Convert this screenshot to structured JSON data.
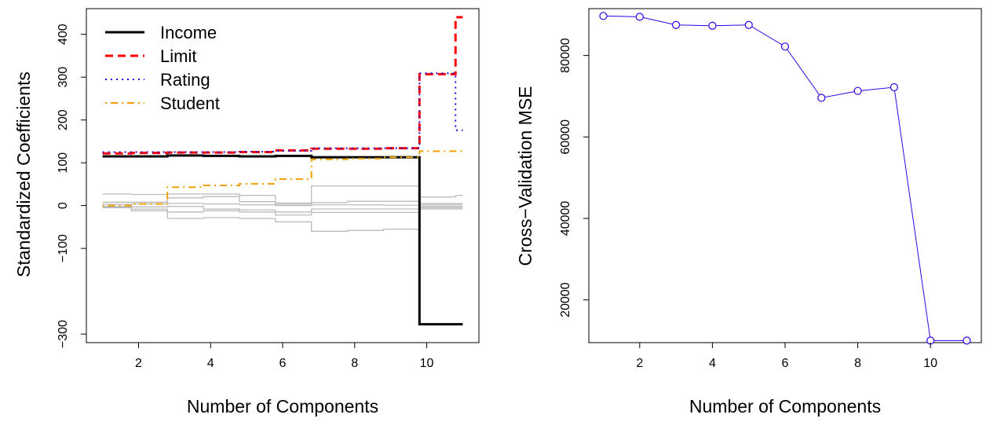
{
  "chart_data": [
    {
      "type": "line",
      "title": "",
      "xlabel": "Number of Components",
      "ylabel": "Standardized Coefficients",
      "xlim": [
        0.55,
        11.45
      ],
      "ylim": [
        -320,
        460
      ],
      "x_ticks": [
        2,
        4,
        6,
        8,
        10
      ],
      "y_ticks": [
        -300,
        -100,
        0,
        100,
        200,
        300,
        400
      ],
      "y_tick_labels": [
        "−300",
        "−100",
        "0",
        "100",
        "200",
        "300",
        "400"
      ],
      "legend_position": "top-left",
      "grid": false,
      "x": [
        1,
        2,
        3,
        4,
        5,
        6,
        7,
        8,
        9,
        10,
        11
      ],
      "series": [
        {
          "name": "Income",
          "color": "#000000",
          "dash": "solid",
          "values": [
            115,
            115,
            117,
            116,
            115,
            116,
            113,
            113,
            113,
            -277,
            -277
          ]
        },
        {
          "name": "Limit",
          "color": "#ff0000",
          "dash": "dashed",
          "values": [
            122,
            123,
            124,
            124,
            125,
            129,
            133,
            133,
            134,
            307,
            440
          ]
        },
        {
          "name": "Rating",
          "color": "#3300cc",
          "dash": "dotted",
          "values": [
            125,
            125,
            125,
            125,
            126,
            128,
            134,
            134,
            134,
            309,
            176
          ]
        },
        {
          "name": "Student",
          "color": "#f0a000",
          "dash": "dotdash",
          "values": [
            0,
            4,
            43,
            47,
            51,
            62,
            108,
            110,
            113,
            127,
            127
          ]
        },
        {
          "name": "",
          "color": "#bbbbbb",
          "dash": "solid",
          "values": [
            27,
            26,
            27,
            27,
            24,
            3,
            46,
            46,
            46,
            20,
            24
          ]
        },
        {
          "name": "",
          "color": "#bbbbbb",
          "dash": "solid",
          "values": [
            8,
            8,
            18,
            21,
            9,
            6,
            7,
            10,
            10,
            5,
            5
          ]
        },
        {
          "name": "",
          "color": "#bbbbbb",
          "dash": "solid",
          "values": [
            3,
            4,
            5,
            4,
            2,
            0,
            2,
            2,
            1,
            2,
            2
          ]
        },
        {
          "name": "",
          "color": "#bbbbbb",
          "dash": "solid",
          "values": [
            -2,
            -3,
            -2,
            -8,
            -10,
            -15,
            -8,
            -8,
            -8,
            -2,
            -2
          ]
        },
        {
          "name": "",
          "color": "#bbbbbb",
          "dash": "solid",
          "values": [
            -4,
            -12,
            -15,
            -12,
            -15,
            -22,
            -16,
            -16,
            -16,
            -5,
            -5
          ]
        },
        {
          "name": "",
          "color": "#bbbbbb",
          "dash": "solid",
          "values": [
            -5,
            -8,
            -30,
            -28,
            -30,
            -38,
            -60,
            -58,
            -55,
            -8,
            -8
          ]
        }
      ]
    },
    {
      "type": "line",
      "title": "",
      "xlabel": "Number of Components",
      "ylabel": "Cross−Validation MSE",
      "xlim": [
        0.6,
        11.4
      ],
      "ylim": [
        9500,
        91500
      ],
      "x_ticks": [
        2,
        4,
        6,
        8,
        10
      ],
      "y_ticks": [
        20000,
        40000,
        60000,
        80000
      ],
      "y_tick_labels": [
        "20000",
        "40000",
        "60000",
        "80000"
      ],
      "grid": false,
      "x": [
        1,
        2,
        3,
        4,
        5,
        6,
        7,
        8,
        9,
        10,
        11
      ],
      "series": [
        {
          "name": "",
          "color": "#3300ee",
          "marker": "open-circle",
          "values": [
            89700,
            89500,
            87500,
            87300,
            87500,
            82200,
            69600,
            71300,
            72200,
            10000,
            10000
          ]
        }
      ]
    }
  ]
}
